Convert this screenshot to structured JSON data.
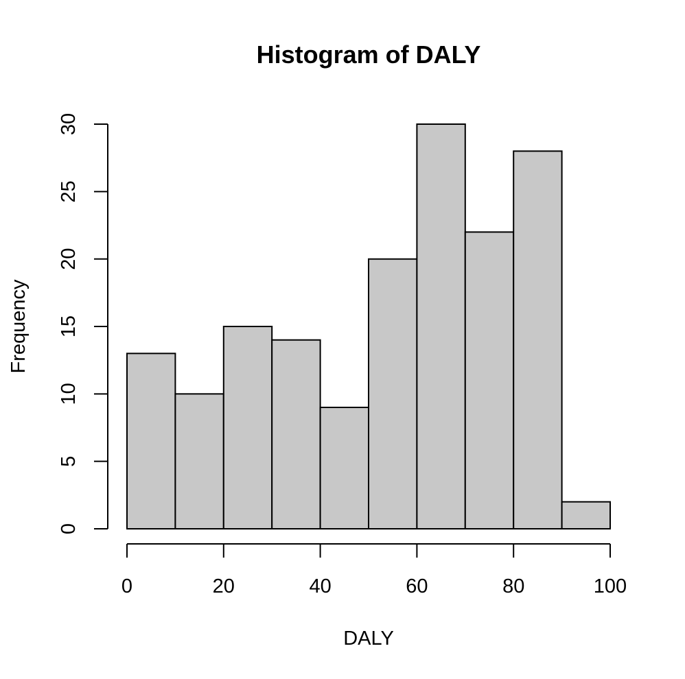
{
  "chart_data": {
    "type": "bar",
    "title": "Histogram of DALY",
    "xlabel": "DALY",
    "ylabel": "Frequency",
    "bins": [
      {
        "from": 0,
        "to": 10,
        "count": 13
      },
      {
        "from": 10,
        "to": 20,
        "count": 10
      },
      {
        "from": 20,
        "to": 30,
        "count": 15
      },
      {
        "from": 30,
        "to": 40,
        "count": 14
      },
      {
        "from": 40,
        "to": 50,
        "count": 9
      },
      {
        "from": 50,
        "to": 60,
        "count": 20
      },
      {
        "from": 60,
        "to": 70,
        "count": 30
      },
      {
        "from": 70,
        "to": 80,
        "count": 22
      },
      {
        "from": 80,
        "to": 90,
        "count": 28
      },
      {
        "from": 90,
        "to": 100,
        "count": 2
      }
    ],
    "xlim": [
      0,
      100
    ],
    "ylim": [
      0,
      30
    ],
    "x_ticks": [
      0,
      20,
      40,
      60,
      80,
      100
    ],
    "y_ticks": [
      0,
      5,
      10,
      15,
      20,
      25,
      30
    ],
    "bar_color": "#c8c8c8",
    "grid": false,
    "legend": "none"
  }
}
